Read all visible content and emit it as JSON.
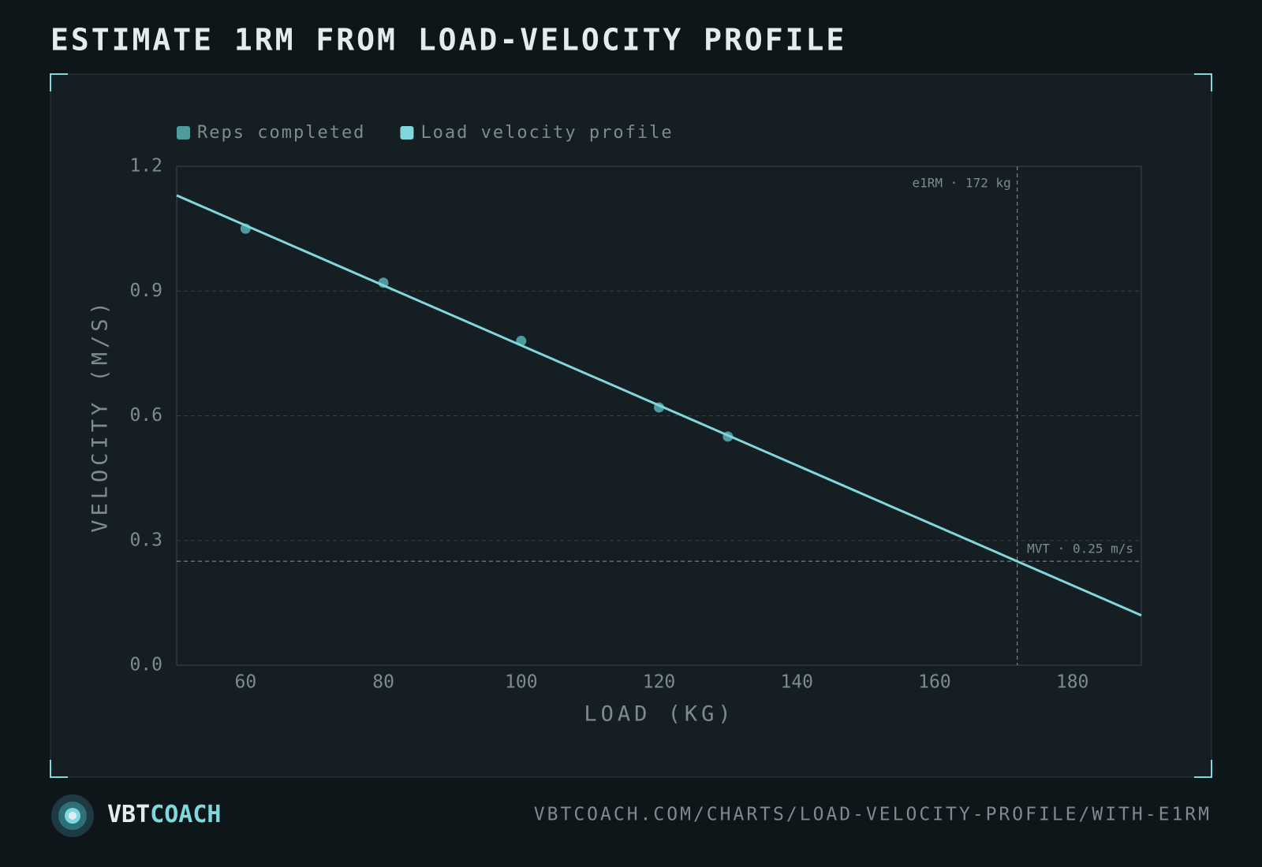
{
  "chart_data": {
    "type": "scatter",
    "title": "ESTIMATE 1RM FROM LOAD-VELOCITY PROFILE",
    "x_label": "LOAD (KG)",
    "y_label": "VELOCITY (M/S)",
    "series": [
      {
        "name": "Reps completed",
        "color": "#4f9a9d",
        "kind": "scatter",
        "x": [
          60,
          80,
          100,
          120,
          130
        ],
        "values": [
          1.05,
          0.92,
          0.78,
          0.62,
          0.55
        ]
      },
      {
        "name": "Load velocity profile",
        "color": "#7fd8dc",
        "kind": "line",
        "x": [
          50,
          190
        ],
        "values": [
          1.13,
          0.12
        ]
      }
    ],
    "annotations": [
      {
        "axis": "x",
        "value": 172,
        "label": "e1RM · 172 kg"
      },
      {
        "axis": "y",
        "value": 0.25,
        "label": "MVT · 0.25 m/s"
      }
    ],
    "xlim": [
      50,
      190
    ],
    "xticks": [
      60,
      80,
      100,
      120,
      140,
      160,
      180
    ],
    "ylim": [
      0,
      1.2
    ],
    "yticks": [
      {
        "value": 0,
        "label": "0.0"
      },
      0.3,
      0.6,
      0.9,
      1.2
    ],
    "grid": true
  },
  "footer": {
    "brand_a": "VBT",
    "brand_b": "COACH",
    "url": "VBTCOACH.COM/CHARTS/LOAD-VELOCITY-PROFILE/WITH-E1RM"
  }
}
